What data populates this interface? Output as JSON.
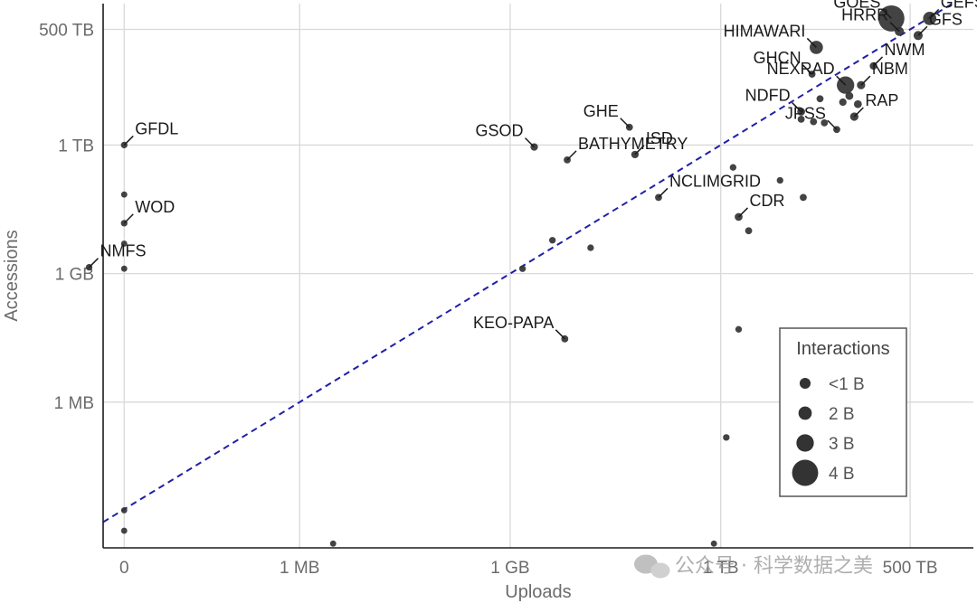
{
  "chart_data": {
    "type": "scatter",
    "xlabel": "Uploads",
    "ylabel": "Accessions",
    "x_scale": "log-bytes",
    "y_scale": "log-bytes",
    "x_ticks": [
      {
        "label": "0",
        "bytes": 0
      },
      {
        "label": "1 MB",
        "bytes": 1000000.0
      },
      {
        "label": "1 GB",
        "bytes": 1000000000.0
      },
      {
        "label": "1 TB",
        "bytes": 1000000000000.0
      },
      {
        "label": "500 TB",
        "bytes": 500000000000000.0
      }
    ],
    "y_ticks": [
      {
        "label": "1 MB",
        "bytes": 1000000.0
      },
      {
        "label": "1 GB",
        "bytes": 1000000000.0
      },
      {
        "label": "1 TB",
        "bytes": 1000000000000.0
      },
      {
        "label": "500 TB",
        "bytes": 500000000000000.0
      }
    ],
    "xlim_log10_bytes": [
      3.2,
      15.6
    ],
    "ylim_log10_bytes": [
      2.6,
      15.3
    ],
    "grid": true,
    "reference_line": {
      "type": "y=x",
      "style": "dashed",
      "color": "#1f1fa8"
    },
    "point_color": "#333333",
    "points": [
      {
        "name": "GOES",
        "x": 270000000000000.0,
        "y": 900000000000000.0,
        "interactions_b": 4.0,
        "label_pos": "left"
      },
      {
        "name": "GEFS",
        "x": 950000000000000.0,
        "y": 900000000000000.0,
        "interactions_b": 2.0,
        "label_pos": "right"
      },
      {
        "name": "GFS",
        "x": 650000000000000.0,
        "y": 360000000000000.0,
        "interactions_b": 1.0,
        "label_pos": "right"
      },
      {
        "name": "HRRR",
        "x": 350000000000000.0,
        "y": 450000000000000.0,
        "interactions_b": 1.0,
        "label_pos": "left"
      },
      {
        "name": "HIMAWARI",
        "x": 23000000000000.0,
        "y": 190000000000000.0,
        "interactions_b": 2.0,
        "label_pos": "left"
      },
      {
        "name": "NWM",
        "x": 150000000000000.0,
        "y": 70000000000000.0,
        "interactions_b": 0.6,
        "label_pos": "right"
      },
      {
        "name": "GHCN",
        "x": 20000000000000.0,
        "y": 45000000000000.0,
        "interactions_b": 0.5,
        "label_pos": "left"
      },
      {
        "name": "NEXRAD",
        "x": 60000000000000.0,
        "y": 25000000000000.0,
        "interactions_b": 3.0,
        "label_pos": "left"
      },
      {
        "name": "NDFD",
        "x": 14000000000000.0,
        "y": 6000000000000.0,
        "interactions_b": 0.7,
        "label_pos": "left"
      },
      {
        "name": "NBM",
        "x": 100000000000000.0,
        "y": 25000000000000.0,
        "interactions_b": 0.8,
        "label_pos": "right"
      },
      {
        "name": "RAP",
        "x": 80000000000000.0,
        "y": 4600000000000.0,
        "interactions_b": 0.8,
        "label_pos": "right"
      },
      {
        "name": "JPSS",
        "x": 45000000000000.0,
        "y": 2300000000000.0,
        "interactions_b": 0.5,
        "label_pos": "left"
      },
      {
        "name": "GHE",
        "x": 50000000000.0,
        "y": 2600000000000.0,
        "interactions_b": 0.5,
        "label_pos": "left"
      },
      {
        "name": "GSOD",
        "x": 2200000000.0,
        "y": 900000000000.0,
        "interactions_b": 0.6,
        "label_pos": "left"
      },
      {
        "name": "ISD",
        "x": 60000000000.0,
        "y": 600000000000.0,
        "interactions_b": 0.6,
        "label_pos": "right"
      },
      {
        "name": "BATHYMETRY",
        "x": 6500000000.0,
        "y": 450000000000.0,
        "interactions_b": 0.5,
        "label_pos": "right"
      },
      {
        "name": "CDR",
        "x": 1800000000000.0,
        "y": 21000000000.0,
        "interactions_b": 0.7,
        "label_pos": "right"
      },
      {
        "name": "NCLIMGRID",
        "x": 130000000000.0,
        "y": 60000000000.0,
        "interactions_b": 0.5,
        "label_pos": "right"
      },
      {
        "name": "KEO-PAPA",
        "x": 6000000000.0,
        "y": 30000000.0,
        "interactions_b": 0.5,
        "label_pos": "left"
      },
      {
        "name": "NMFS",
        "x": 1000.0,
        "y": 1400000000.0,
        "interactions_b": 0.4,
        "label_pos": "right"
      },
      {
        "name": "GFDL",
        "x": 0,
        "y": 1000000000000.0,
        "interactions_b": 0.4,
        "label_pos": "right"
      },
      {
        "name": "WOD",
        "x": 0,
        "y": 15000000000.0,
        "interactions_b": 0.4,
        "label_pos": "right"
      },
      {
        "name": "",
        "x": 0,
        "y": 70000000000.0,
        "interactions_b": 0.3
      },
      {
        "name": "",
        "x": 0,
        "y": 5000000000.0,
        "interactions_b": 0.3
      },
      {
        "name": "",
        "x": 0,
        "y": 1300000000.0,
        "interactions_b": 0.3
      },
      {
        "name": "",
        "x": 0,
        "y": 3000.0,
        "interactions_b": 0.3
      },
      {
        "name": "",
        "x": 0,
        "y": 1000.0,
        "interactions_b": 0.3
      },
      {
        "name": "",
        "x": 1500000000.0,
        "y": 1300000000.0,
        "interactions_b": 0.4
      },
      {
        "name": "",
        "x": 4000000000.0,
        "y": 6000000000.0,
        "interactions_b": 0.4
      },
      {
        "name": "",
        "x": 14000000000.0,
        "y": 4000000000.0,
        "interactions_b": 0.4
      },
      {
        "name": "",
        "x": 1500000000000.0,
        "y": 300000000000.0,
        "interactions_b": 0.4
      },
      {
        "name": "",
        "x": 7000000000000.0,
        "y": 150000000000.0,
        "interactions_b": 0.4
      },
      {
        "name": "",
        "x": 15000000000000.0,
        "y": 60000000000.0,
        "interactions_b": 0.5
      },
      {
        "name": "",
        "x": 2500000000000.0,
        "y": 10000000000.0,
        "interactions_b": 0.5
      },
      {
        "name": "",
        "x": 1800000000000.0,
        "y": 50000000.0,
        "interactions_b": 0.4
      },
      {
        "name": "",
        "x": 1200000000000.0,
        "y": 150000.0,
        "interactions_b": 0.4
      },
      {
        "name": "",
        "x": 3000000.0,
        "y": 500.0,
        "interactions_b": 0.3
      },
      {
        "name": "",
        "x": 800000000000.0,
        "y": 500.0,
        "interactions_b": 0.3
      },
      {
        "name": "",
        "x": 14000000000000.0,
        "y": 4000000000000.0,
        "interactions_b": 0.5
      },
      {
        "name": "",
        "x": 21000000000000.0,
        "y": 3500000000000.0,
        "interactions_b": 0.5
      },
      {
        "name": "",
        "x": 30000000000000.0,
        "y": 3300000000000.0,
        "interactions_b": 0.5
      },
      {
        "name": "",
        "x": 26000000000000.0,
        "y": 12000000000000.0,
        "interactions_b": 0.5
      },
      {
        "name": "",
        "x": 55000000000000.0,
        "y": 10000000000000.0,
        "interactions_b": 0.6
      },
      {
        "name": "",
        "x": 68000000000000.0,
        "y": 14000000000000.0,
        "interactions_b": 0.7
      },
      {
        "name": "",
        "x": 90000000000000.0,
        "y": 9000000000000.0,
        "interactions_b": 0.7
      }
    ],
    "legend": {
      "title": "Interactions",
      "position": "bottom-right",
      "entries": [
        {
          "label": "<1 B",
          "value": 1
        },
        {
          "label": "2 B",
          "value": 2
        },
        {
          "label": "3 B",
          "value": 3
        },
        {
          "label": "4 B",
          "value": 4
        }
      ]
    }
  },
  "watermark": {
    "text": "公众号 · 科学数据之美",
    "icon": "wechat-icon"
  }
}
